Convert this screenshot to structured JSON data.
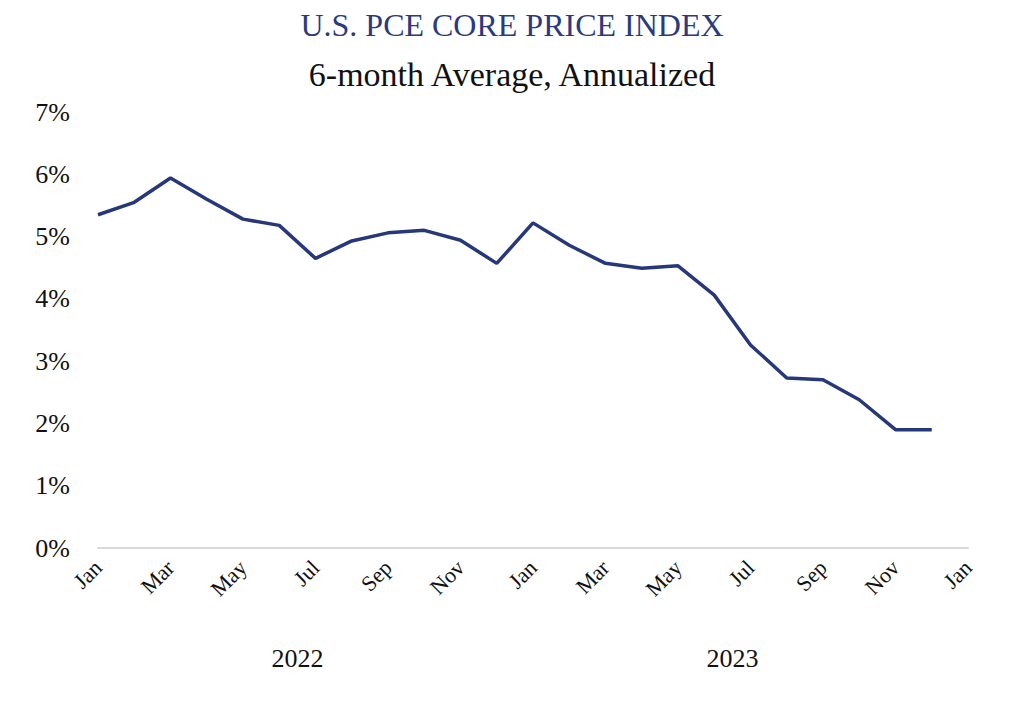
{
  "chart_data": {
    "type": "line",
    "title": "U.S. PCE CORE PRICE INDEX",
    "subtitle": "6-month Average, Annualized",
    "categories": [
      "Jan",
      null,
      "Mar",
      null,
      "May",
      null,
      "Jul",
      null,
      "Sep",
      null,
      "Nov",
      null,
      "Jan",
      null,
      "Mar",
      null,
      "May",
      null,
      "Jul",
      null,
      "Sep",
      null,
      "Nov",
      null,
      "Jan"
    ],
    "values": [
      5.35,
      5.55,
      5.94,
      5.6,
      5.28,
      5.18,
      4.65,
      4.93,
      5.06,
      5.1,
      4.94,
      4.57,
      5.22,
      4.86,
      4.57,
      4.49,
      4.53,
      4.06,
      3.26,
      2.73,
      2.7,
      2.38,
      1.9,
      1.9,
      null
    ],
    "color": "#26377a",
    "annotations": [
      "2022",
      "2023"
    ],
    "ylim": [
      0,
      7
    ],
    "yticks": [
      {
        "value": 0,
        "label": "0%"
      },
      {
        "value": 1,
        "label": "1%"
      },
      {
        "value": 2,
        "label": "2%"
      },
      {
        "value": 3,
        "label": "3%"
      },
      {
        "value": 4,
        "label": "4%"
      },
      {
        "value": 5,
        "label": "5%"
      },
      {
        "value": 6,
        "label": "6%"
      },
      {
        "value": 7,
        "label": "7%"
      }
    ],
    "grid": false
  }
}
